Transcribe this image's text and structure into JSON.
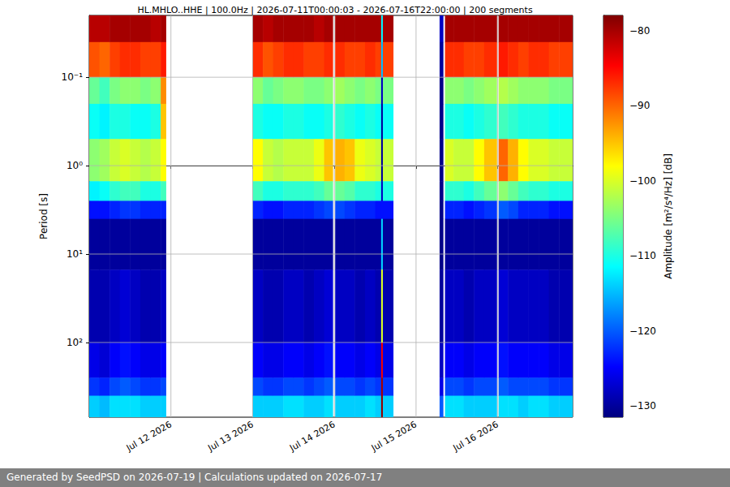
{
  "chart_data": {
    "type": "heatmap",
    "title": "HL.MHLO..HHE | 100.0Hz | 2026-07-11T00:00:03 - 2026-07-16T22:00:00 | 200 segments",
    "ylabel": "Period [s]",
    "footer": "Generated by SeedPSD on 2026-07-19 | Calculations updated on 2026-07-17",
    "log": "y",
    "grid": true,
    "xlim": [
      "2026-07-11T00:00",
      "2026-07-16T22:00"
    ],
    "xticks": [
      {
        "value": "2026-07-12T00:00",
        "label": "Jul 12 2026"
      },
      {
        "value": "2026-07-13T00:00",
        "label": "Jul 13 2026"
      },
      {
        "value": "2026-07-14T00:00",
        "label": "Jul 14 2026"
      },
      {
        "value": "2026-07-15T00:00",
        "label": "Jul 15 2026"
      },
      {
        "value": "2026-07-16T00:00",
        "label": "Jul 16 2026"
      }
    ],
    "ylim": [
      0.02,
      700
    ],
    "yticks": [
      {
        "value": 0.1,
        "label": "10⁻¹"
      },
      {
        "value": 1,
        "label": "10⁰"
      },
      {
        "value": 10,
        "label": "10¹"
      },
      {
        "value": 100,
        "label": "10²"
      }
    ],
    "colorbar": {
      "label": "Amplitude [m²/s⁴/Hz] [dB]",
      "lim": [
        -131.5,
        -78
      ],
      "ticks": [
        {
          "value": -130,
          "label": "−130"
        },
        {
          "value": -120,
          "label": "−120"
        },
        {
          "value": -110,
          "label": "−110"
        },
        {
          "value": -100,
          "label": "−100"
        },
        {
          "value": -90,
          "label": "−90"
        },
        {
          "value": -80,
          "label": "−80"
        }
      ]
    },
    "y_edges": [
      0.02,
      0.04,
      0.1,
      0.2,
      0.5,
      1.5,
      2.5,
      4,
      15,
      100,
      250,
      400,
      700
    ],
    "cells": [
      {
        "start": "2026-07-11T00:00",
        "end": "2026-07-11T03:00",
        "values": [
          -81,
          -89,
          -106,
          -111,
          -104,
          -112,
          -124,
          -130,
          -129,
          -126,
          -122,
          -114
        ]
      },
      {
        "start": "2026-07-11T03:00",
        "end": "2026-07-11T06:00",
        "values": [
          -81,
          -90,
          -108,
          -112,
          -103,
          -111,
          -124,
          -130,
          -129,
          -127,
          -123,
          -115
        ]
      },
      {
        "start": "2026-07-11T06:00",
        "end": "2026-07-11T09:00",
        "values": [
          -80,
          -88,
          -105,
          -110,
          -101,
          -109,
          -123,
          -130,
          -128,
          -125,
          -121,
          -113
        ]
      },
      {
        "start": "2026-07-11T09:00",
        "end": "2026-07-11T12:00",
        "values": [
          -80,
          -87,
          -104,
          -110,
          -100,
          -108,
          -122,
          -130,
          -127,
          -124,
          -120,
          -113
        ]
      },
      {
        "start": "2026-07-11T12:00",
        "end": "2026-07-11T15:00",
        "values": [
          -80,
          -87,
          -104,
          -111,
          -101,
          -108,
          -122,
          -130,
          -128,
          -125,
          -121,
          -113
        ]
      },
      {
        "start": "2026-07-11T15:00",
        "end": "2026-07-11T18:00",
        "values": [
          -80,
          -88,
          -105,
          -111,
          -102,
          -110,
          -123,
          -130,
          -129,
          -126,
          -122,
          -114
        ]
      },
      {
        "start": "2026-07-11T18:00",
        "end": "2026-07-11T21:00",
        "values": [
          -81,
          -88,
          -104,
          -110,
          -101,
          -110,
          -123,
          -130,
          -129,
          -126,
          -122,
          -114
        ]
      },
      {
        "start": "2026-07-11T21:00",
        "end": "2026-07-11T22:30",
        "values": [
          -80,
          -86,
          -92,
          -95,
          -98,
          -108,
          -123,
          -130,
          -128,
          -125,
          -121,
          -114
        ]
      },
      {
        "start": "2026-07-13T00:00",
        "end": "2026-07-13T03:00",
        "values": [
          -80,
          -87,
          -104,
          -110,
          -98,
          -108,
          -123,
          -130,
          -128,
          -125,
          -121,
          -114
        ]
      },
      {
        "start": "2026-07-13T03:00",
        "end": "2026-07-13T06:00",
        "values": [
          -81,
          -89,
          -106,
          -111,
          -101,
          -110,
          -124,
          -130,
          -129,
          -126,
          -122,
          -114
        ]
      },
      {
        "start": "2026-07-13T06:00",
        "end": "2026-07-13T09:00",
        "values": [
          -80,
          -88,
          -105,
          -111,
          -102,
          -110,
          -124,
          -130,
          -129,
          -126,
          -122,
          -114
        ]
      },
      {
        "start": "2026-07-13T09:00",
        "end": "2026-07-13T12:00",
        "values": [
          -80,
          -87,
          -104,
          -110,
          -101,
          -109,
          -123,
          -130,
          -128,
          -125,
          -121,
          -113
        ]
      },
      {
        "start": "2026-07-13T12:00",
        "end": "2026-07-13T15:00",
        "values": [
          -80,
          -87,
          -104,
          -110,
          -101,
          -109,
          -123,
          -130,
          -128,
          -125,
          -121,
          -113
        ]
      },
      {
        "start": "2026-07-13T15:00",
        "end": "2026-07-13T18:00",
        "values": [
          -80,
          -88,
          -105,
          -111,
          -101,
          -109,
          -123,
          -130,
          -129,
          -126,
          -122,
          -114
        ]
      },
      {
        "start": "2026-07-13T18:00",
        "end": "2026-07-13T21:00",
        "values": [
          -81,
          -88,
          -105,
          -111,
          -99,
          -108,
          -122,
          -130,
          -128,
          -125,
          -121,
          -114
        ]
      },
      {
        "start": "2026-07-13T21:00",
        "end": "2026-07-13T23:30",
        "values": [
          -80,
          -87,
          -104,
          -110,
          -95,
          -106,
          -121,
          -130,
          -127,
          -124,
          -120,
          -113
        ]
      },
      {
        "start": "2026-07-14T00:15",
        "end": "2026-07-14T03:00",
        "values": [
          -80,
          -87,
          -103,
          -109,
          -94,
          -106,
          -121,
          -130,
          -128,
          -125,
          -121,
          -114
        ]
      },
      {
        "start": "2026-07-14T03:00",
        "end": "2026-07-14T06:00",
        "values": [
          -80,
          -88,
          -104,
          -110,
          -95,
          -107,
          -122,
          -130,
          -128,
          -125,
          -121,
          -114
        ]
      },
      {
        "start": "2026-07-14T06:00",
        "end": "2026-07-14T09:00",
        "values": [
          -80,
          -88,
          -105,
          -111,
          -99,
          -109,
          -123,
          -130,
          -129,
          -126,
          -122,
          -114
        ]
      },
      {
        "start": "2026-07-14T09:00",
        "end": "2026-07-14T12:00",
        "values": [
          -80,
          -87,
          -104,
          -110,
          -100,
          -109,
          -123,
          -130,
          -128,
          -125,
          -121,
          -113
        ]
      },
      {
        "start": "2026-07-14T12:00",
        "end": "2026-07-14T13:45",
        "values": [
          -80,
          -88,
          -105,
          -111,
          -101,
          -110,
          -124,
          -130,
          -129,
          -126,
          -122,
          -114
        ]
      },
      {
        "start": "2026-07-14T13:45",
        "end": "2026-07-14T14:15",
        "values": [
          -112,
          -115,
          -128,
          -130,
          -130,
          -128,
          -124,
          -114,
          -100,
          -84,
          -80,
          -79
        ]
      },
      {
        "start": "2026-07-14T14:15",
        "end": "2026-07-14T17:15",
        "values": [
          -80,
          -88,
          -105,
          -111,
          -101,
          -110,
          -124,
          -130,
          -129,
          -126,
          -122,
          -114
        ]
      },
      {
        "start": "2026-07-15T06:55",
        "end": "2026-07-15T07:55",
        "values": [
          -128,
          -130,
          -131,
          -131,
          -131,
          -131,
          -131,
          -131,
          -130,
          -128,
          -126,
          -120
        ]
      },
      {
        "start": "2026-07-15T08:30",
        "end": "2026-07-15T11:00",
        "values": [
          -80,
          -87,
          -104,
          -110,
          -100,
          -109,
          -123,
          -130,
          -128,
          -125,
          -121,
          -113
        ]
      },
      {
        "start": "2026-07-15T11:00",
        "end": "2026-07-15T14:00",
        "values": [
          -80,
          -87,
          -104,
          -110,
          -101,
          -109,
          -123,
          -130,
          -128,
          -125,
          -121,
          -113
        ]
      },
      {
        "start": "2026-07-15T14:00",
        "end": "2026-07-15T17:00",
        "values": [
          -80,
          -88,
          -105,
          -111,
          -101,
          -110,
          -124,
          -130,
          -129,
          -126,
          -122,
          -114
        ]
      },
      {
        "start": "2026-07-15T17:00",
        "end": "2026-07-15T20:00",
        "values": [
          -80,
          -88,
          -104,
          -110,
          -98,
          -108,
          -123,
          -130,
          -128,
          -125,
          -121,
          -114
        ]
      },
      {
        "start": "2026-07-15T20:00",
        "end": "2026-07-15T23:40",
        "values": [
          -80,
          -87,
          -103,
          -109,
          -95,
          -106,
          -122,
          -130,
          -128,
          -125,
          -121,
          -114
        ]
      },
      {
        "start": "2026-07-16T00:15",
        "end": "2026-07-16T03:00",
        "values": [
          -80,
          -86,
          -102,
          -108,
          -90,
          -104,
          -120,
          -130,
          -127,
          -124,
          -120,
          -113
        ]
      },
      {
        "start": "2026-07-16T03:00",
        "end": "2026-07-16T06:00",
        "values": [
          -80,
          -87,
          -103,
          -109,
          -94,
          -106,
          -121,
          -130,
          -128,
          -125,
          -121,
          -113
        ]
      },
      {
        "start": "2026-07-16T06:00",
        "end": "2026-07-16T09:00",
        "values": [
          -80,
          -88,
          -104,
          -110,
          -98,
          -108,
          -123,
          -130,
          -128,
          -125,
          -121,
          -114
        ]
      },
      {
        "start": "2026-07-16T09:00",
        "end": "2026-07-16T12:00",
        "values": [
          -80,
          -87,
          -104,
          -110,
          -100,
          -109,
          -123,
          -130,
          -128,
          -125,
          -121,
          -113
        ]
      },
      {
        "start": "2026-07-16T12:00",
        "end": "2026-07-16T15:00",
        "values": [
          -80,
          -87,
          -104,
          -110,
          -100,
          -109,
          -123,
          -130,
          -128,
          -125,
          -121,
          -113
        ]
      },
      {
        "start": "2026-07-16T15:00",
        "end": "2026-07-16T18:00",
        "values": [
          -80,
          -88,
          -105,
          -111,
          -101,
          -110,
          -124,
          -130,
          -129,
          -126,
          -122,
          -114
        ]
      },
      {
        "start": "2026-07-16T18:00",
        "end": "2026-07-16T22:00",
        "values": [
          -80,
          -88,
          -105,
          -111,
          -101,
          -110,
          -124,
          -130,
          -129,
          -126,
          -122,
          -114
        ]
      }
    ]
  }
}
